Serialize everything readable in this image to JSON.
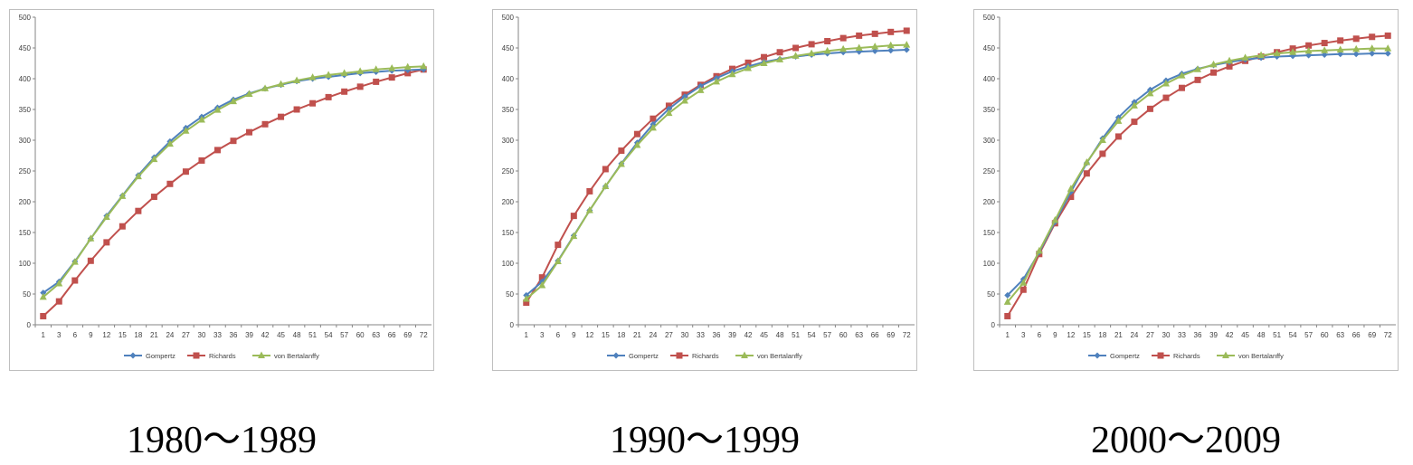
{
  "chart_data": [
    {
      "type": "line",
      "caption": "1980～1989",
      "x": [
        1,
        3,
        6,
        9,
        12,
        15,
        18,
        21,
        24,
        27,
        30,
        33,
        36,
        39,
        42,
        45,
        48,
        51,
        54,
        57,
        60,
        63,
        66,
        69,
        72
      ],
      "ylim": [
        0,
        500
      ],
      "yticks": [
        0,
        50,
        100,
        150,
        200,
        250,
        300,
        350,
        400,
        450,
        500
      ],
      "legend_position": "bottom",
      "series": [
        {
          "name": "Gompertz",
          "color": "#4f81bd",
          "marker": "diamond",
          "values": [
            52,
            70,
            103,
            140,
            177,
            210,
            243,
            272,
            298,
            320,
            338,
            353,
            366,
            376,
            384,
            390,
            396,
            400,
            403,
            406,
            409,
            411,
            413,
            414,
            415
          ]
        },
        {
          "name": "Richards",
          "color": "#c0504d",
          "marker": "square",
          "values": [
            14,
            38,
            72,
            104,
            134,
            160,
            185,
            208,
            229,
            249,
            267,
            284,
            299,
            313,
            326,
            338,
            350,
            360,
            370,
            379,
            387,
            395,
            402,
            409,
            415
          ]
        },
        {
          "name": "von Bertalanffy",
          "color": "#9bbb59",
          "marker": "triangle",
          "values": [
            45,
            67,
            102,
            140,
            175,
            209,
            241,
            269,
            294,
            315,
            333,
            349,
            363,
            375,
            384,
            391,
            397,
            402,
            406,
            409,
            412,
            415,
            417,
            419,
            420
          ]
        }
      ]
    },
    {
      "type": "line",
      "caption": "1990～1999",
      "x": [
        1,
        3,
        6,
        9,
        12,
        15,
        18,
        21,
        24,
        27,
        30,
        33,
        36,
        39,
        42,
        45,
        48,
        51,
        54,
        57,
        60,
        63,
        66,
        69,
        72
      ],
      "ylim": [
        0,
        500
      ],
      "yticks": [
        0,
        50,
        100,
        150,
        200,
        250,
        300,
        350,
        400,
        450,
        500
      ],
      "legend_position": "bottom",
      "series": [
        {
          "name": "Gompertz",
          "color": "#4f81bd",
          "marker": "diamond",
          "values": [
            48,
            70,
            104,
            145,
            186,
            225,
            262,
            296,
            326,
            351,
            371,
            388,
            401,
            412,
            420,
            427,
            432,
            436,
            439,
            441,
            443,
            444,
            445,
            446,
            447
          ]
        },
        {
          "name": "Richards",
          "color": "#c0504d",
          "marker": "square",
          "values": [
            36,
            77,
            130,
            177,
            217,
            253,
            283,
            310,
            335,
            356,
            374,
            390,
            404,
            416,
            426,
            435,
            443,
            450,
            456,
            461,
            466,
            470,
            473,
            476,
            478
          ]
        },
        {
          "name": "von Bertalanffy",
          "color": "#9bbb59",
          "marker": "triangle",
          "values": [
            42,
            64,
            103,
            144,
            186,
            225,
            261,
            292,
            320,
            344,
            364,
            381,
            395,
            407,
            417,
            425,
            431,
            437,
            441,
            445,
            448,
            450,
            452,
            454,
            455
          ]
        }
      ]
    },
    {
      "type": "line",
      "caption": "2000～2009",
      "x": [
        1,
        3,
        6,
        9,
        12,
        15,
        18,
        21,
        24,
        27,
        30,
        33,
        36,
        39,
        42,
        45,
        48,
        51,
        54,
        57,
        60,
        63,
        66,
        69,
        72
      ],
      "ylim": [
        0,
        500
      ],
      "yticks": [
        0,
        50,
        100,
        150,
        200,
        250,
        300,
        350,
        400,
        450,
        500
      ],
      "legend_position": "bottom",
      "series": [
        {
          "name": "Gompertz",
          "color": "#4f81bd",
          "marker": "diamond",
          "values": [
            48,
            74,
            118,
            167,
            216,
            263,
            303,
            337,
            362,
            382,
            397,
            408,
            416,
            422,
            427,
            431,
            434,
            436,
            437,
            438,
            439,
            440,
            440,
            441,
            441
          ]
        },
        {
          "name": "Richards",
          "color": "#c0504d",
          "marker": "square",
          "values": [
            14,
            57,
            115,
            165,
            208,
            246,
            278,
            306,
            330,
            351,
            369,
            385,
            398,
            410,
            420,
            429,
            436,
            443,
            449,
            454,
            458,
            462,
            465,
            468,
            470
          ]
        },
        {
          "name": "von Bertalanffy",
          "color": "#9bbb59",
          "marker": "triangle",
          "values": [
            37,
            68,
            120,
            170,
            221,
            264,
            300,
            331,
            356,
            376,
            392,
            405,
            415,
            423,
            429,
            434,
            438,
            441,
            443,
            445,
            446,
            447,
            448,
            449,
            449
          ]
        }
      ]
    }
  ]
}
